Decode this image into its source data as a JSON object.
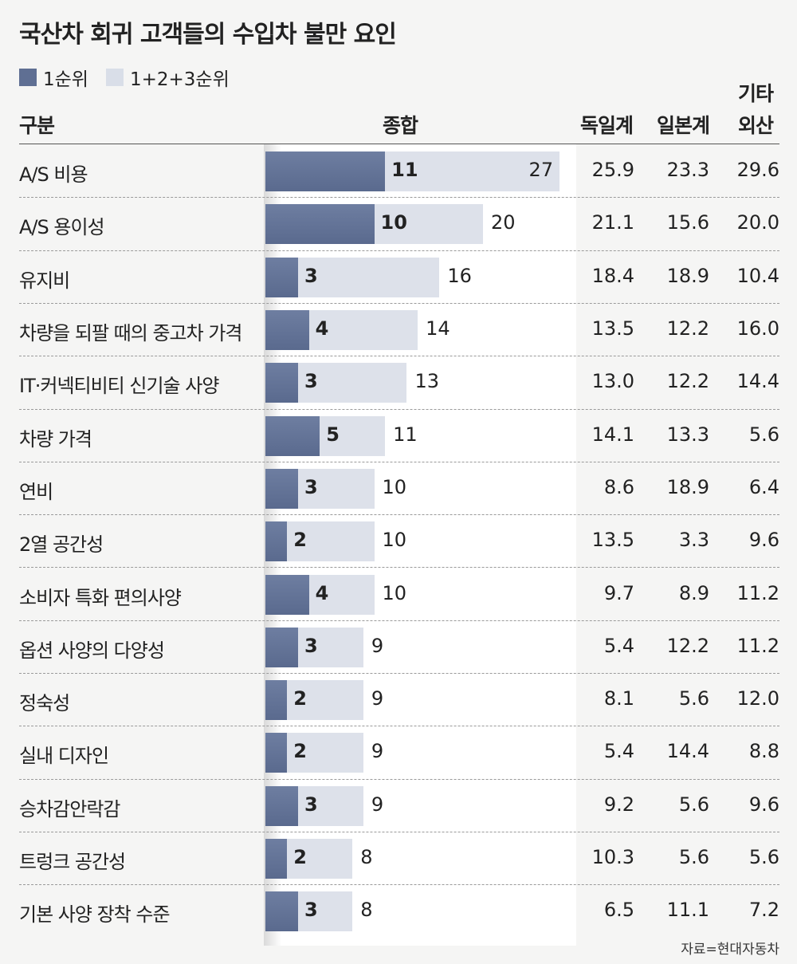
{
  "title": "국산차 회귀 고객들의 수입차 불만 요인",
  "legend": [
    {
      "label": "1순위",
      "color": "#5f6f93"
    },
    {
      "label": "1+2+3순위",
      "color": "#d9dee8"
    }
  ],
  "headers": {
    "category": "구분",
    "total": "종합",
    "german": "독일계",
    "japanese": "일본계",
    "other_line1": "기타",
    "other_line2": "외산"
  },
  "source": "자료=현대자동차",
  "chart_data": {
    "type": "bar",
    "categories": [
      "A/S 비용",
      "A/S 용이성",
      "유지비",
      "차량을 되팔 때의 중고차 가격",
      "IT·커넥티비티 신기술 사양",
      "차량 가격",
      "연비",
      "2열 공간성",
      "소비자 특화 편의사양",
      "옵션 사양의 다양성",
      "정숙성",
      "실내 디자인",
      "승차감안락감",
      "트렁크 공간성",
      "기본 사양 장착 수준"
    ],
    "series": [
      {
        "name": "1순위",
        "values": [
          11,
          10,
          3,
          4,
          3,
          5,
          3,
          2,
          4,
          3,
          2,
          2,
          3,
          2,
          3
        ]
      },
      {
        "name": "1+2+3순위",
        "values": [
          27,
          20,
          16,
          14,
          13,
          11,
          10,
          10,
          10,
          9,
          9,
          9,
          9,
          8,
          8
        ]
      }
    ],
    "table": {
      "german": [
        "25.9",
        "21.1",
        "18.4",
        "13.5",
        "13.0",
        "14.1",
        "8.6",
        "13.5",
        "9.7",
        "5.4",
        "8.1",
        "5.4",
        "9.2",
        "10.3",
        "6.5"
      ],
      "japanese": [
        "23.3",
        "15.6",
        "18.9",
        "12.2",
        "12.2",
        "13.3",
        "18.9",
        "3.3",
        "8.9",
        "12.2",
        "5.6",
        "14.4",
        "5.6",
        "5.6",
        "11.1"
      ],
      "other": [
        "29.6",
        "20.0",
        "10.4",
        "16.0",
        "14.4",
        "5.6",
        "6.4",
        "9.6",
        "11.2",
        "11.2",
        "12.0",
        "8.8",
        "9.6",
        "5.6",
        "7.2"
      ]
    },
    "xlim": [
      0,
      27
    ],
    "grid": false,
    "legend_position": "top-left"
  }
}
